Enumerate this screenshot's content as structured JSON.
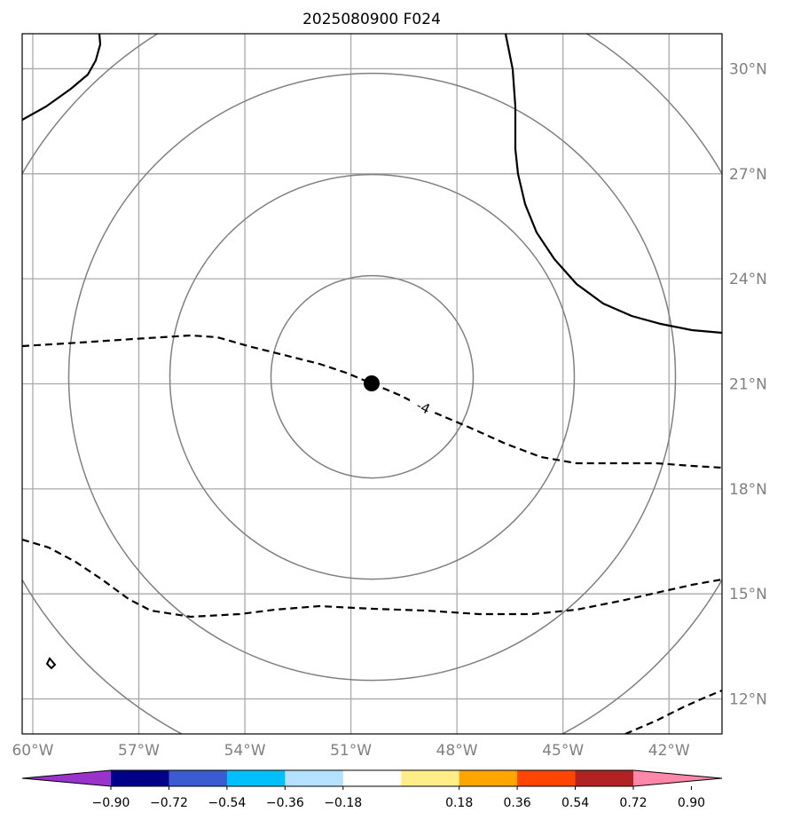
{
  "title": "2025080900 F024",
  "map": {
    "lon_range": [
      -60.3,
      -40.5
    ],
    "lat_range": [
      11.0,
      31.0
    ],
    "lon_ticks": [
      -60,
      -57,
      -54,
      -51,
      -48,
      -45,
      -42
    ],
    "lat_ticks": [
      12,
      15,
      18,
      21,
      24,
      27,
      30
    ],
    "lon_tick_labels": [
      "60°W",
      "57°W",
      "54°W",
      "51°W",
      "48°W",
      "45°W",
      "42°W"
    ],
    "lat_tick_labels": [
      "12°N",
      "15°N",
      "18°N",
      "21°N",
      "24°N",
      "27°N",
      "30°N"
    ],
    "gridlines": true,
    "storm_center": {
      "lon": -50.4,
      "lat": 21.2
    },
    "range_rings_count": 4,
    "contour_label": "-4"
  },
  "colorbar": {
    "colors": [
      "#9933cc",
      "#000088",
      "#3a5bd2",
      "#00bfff",
      "#b3e1ff",
      "#ffffff",
      "#ffee88",
      "#ffa500",
      "#ff4500",
      "#b22222",
      "#ff88aa"
    ],
    "tick_labels": [
      "−0.90",
      "−0.72",
      "−0.54",
      "−0.36",
      "−0.18",
      "0.18",
      "0.36",
      "0.54",
      "0.72",
      "0.90"
    ],
    "extend": "both"
  },
  "colors": {
    "grid": "#aaaaaa",
    "ring": "#808080",
    "contour": "#000000"
  }
}
